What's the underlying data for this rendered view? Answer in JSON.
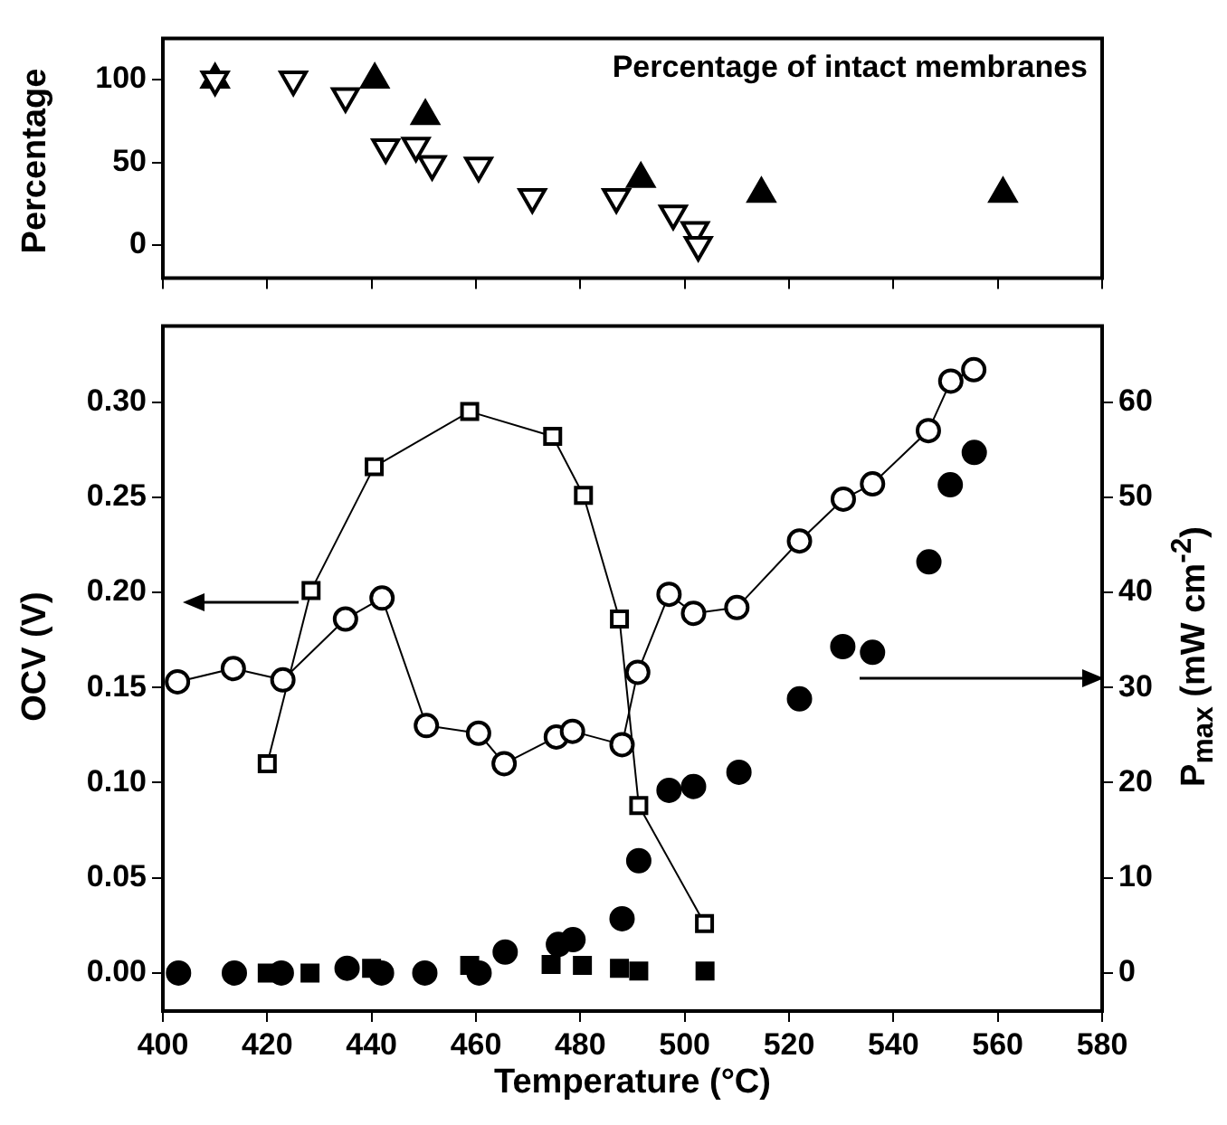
{
  "chart_data": [
    {
      "type": "scatter",
      "ylabel": "Percentage",
      "annotations": [
        "Percentage of intact membranes"
      ],
      "xlim": [
        400,
        580
      ],
      "xticks": [
        400,
        420,
        440,
        460,
        480,
        500,
        520,
        540,
        560,
        580
      ],
      "ylim": [
        -20,
        125
      ],
      "yticks": [
        0,
        50,
        100
      ],
      "tick_labels": "y",
      "grid": false,
      "legend": false,
      "series": [
        {
          "color": "#000000",
          "marker": "triangle",
          "x": [
            410,
            425,
            435,
            442.7,
            448.5,
            451.6,
            460.5,
            470.8,
            486.9,
            497.8,
            502,
            502.6
          ],
          "values": [
            100,
            100,
            90,
            59,
            60,
            49,
            48,
            29,
            29,
            19,
            9,
            0
          ]
        },
        {
          "color": "#000000",
          "marker": "triangle",
          "x": [
            410,
            440.6,
            450.3,
            491.6,
            514.7,
            561
          ],
          "values": [
            100,
            100,
            78,
            40,
            31,
            31
          ]
        }
      ]
    },
    {
      "type": "line",
      "xlabel": "Temperature (°C)",
      "ylabel": "OCV (V)",
      "y2label": "P$_{max}$ (mW cm$^{-2}$)",
      "xlim": [
        400,
        580
      ],
      "xticks": [
        400,
        420,
        440,
        460,
        480,
        500,
        520,
        540,
        560,
        580
      ],
      "ylim": [
        -0.02,
        0.34
      ],
      "yticks": [
        {
          "value": 0,
          "label": "0.00"
        },
        {
          "value": 0.05,
          "label": "0.05"
        },
        {
          "value": 0.1,
          "label": "0.10"
        },
        {
          "value": 0.15,
          "label": "0.15"
        },
        {
          "value": 0.2,
          "label": "0.20"
        },
        {
          "value": 0.25,
          "label": "0.25"
        },
        {
          "value": 0.3,
          "label": "0.30"
        }
      ],
      "y2lim": [
        -4,
        68
      ],
      "y2ticks": [
        0,
        10,
        20,
        30,
        40,
        50,
        60
      ],
      "grid": false,
      "legend": false,
      "series": [
        {
          "color": "#000000",
          "marker": "circle",
          "x": [
            402.8,
            413.5,
            423,
            435,
            442,
            450.5,
            460.5,
            465.4,
            475.4,
            478.5,
            488,
            491,
            497,
            501.7,
            510,
            522,
            530.4,
            536,
            546.7,
            551,
            555.4
          ],
          "values": [
            0.153,
            0.16,
            0.154,
            0.186,
            0.197,
            0.13,
            0.126,
            0.11,
            0.124,
            0.127,
            0.12,
            0.158,
            0.199,
            0.189,
            0.192,
            0.227,
            0.249,
            0.257,
            0.285,
            0.311,
            0.317
          ]
        },
        {
          "color": "#000000",
          "marker": "square",
          "x": [
            420,
            428.4,
            440.5,
            458.8,
            474.7,
            480.6,
            487.5,
            491.2,
            503.8
          ],
          "values": [
            0.11,
            0.201,
            0.266,
            0.295,
            0.282,
            0.251,
            0.186,
            0.088,
            0.026
          ]
        },
        {
          "type": "scatter",
          "axis": "y2",
          "color": "#000000",
          "marker": "circle",
          "x": [
            403,
            413.7,
            422.7,
            435.3,
            441.9,
            450.2,
            460.6,
            465.6,
            475.8,
            478.6,
            488,
            491.2,
            497,
            501.7,
            510.4,
            522,
            530.3,
            536,
            546.8,
            550.9,
            555.5
          ],
          "values": [
            0,
            0,
            0,
            0.5,
            0,
            0,
            0,
            2.2,
            3,
            3.5,
            5.7,
            11.8,
            19.2,
            19.6,
            21.1,
            28.8,
            34.3,
            33.7,
            43.2,
            51.3,
            54.7
          ]
        },
        {
          "type": "scatter",
          "axis": "y2",
          "color": "#000000",
          "marker": "square",
          "x": [
            420,
            428.2,
            440,
            458.8,
            474.4,
            480.4,
            487.5,
            491.2,
            503.9
          ],
          "values": [
            0,
            0,
            0.5,
            0.8,
            0.9,
            0.8,
            0.5,
            0.2,
            0.2
          ]
        }
      ]
    }
  ]
}
